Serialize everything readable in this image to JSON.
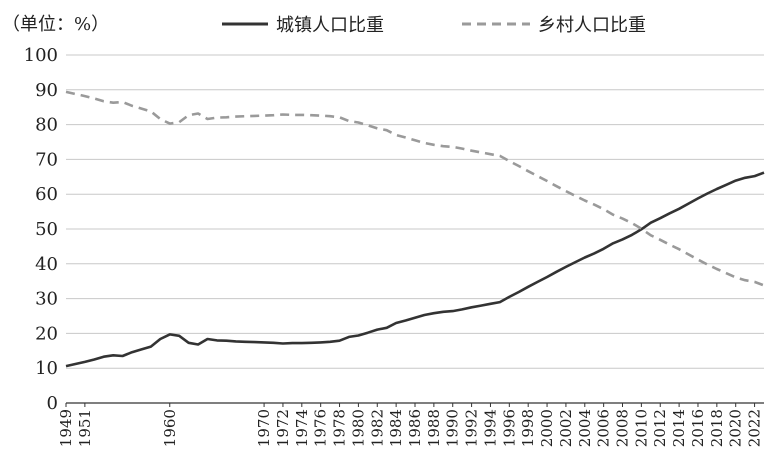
{
  "chart_data": {
    "type": "line",
    "unit_label": "（单位：%）",
    "title": "",
    "xlabel": "",
    "ylabel": "",
    "ylim": [
      0,
      100
    ],
    "yticks": [
      0,
      10,
      20,
      30,
      40,
      50,
      60,
      70,
      80,
      90,
      100
    ],
    "grid": true,
    "legend_position": "top-right",
    "x": [
      1949,
      1950,
      1951,
      1952,
      1953,
      1954,
      1955,
      1956,
      1957,
      1958,
      1959,
      1960,
      1961,
      1962,
      1963,
      1964,
      1965,
      1966,
      1967,
      1968,
      1969,
      1970,
      1971,
      1972,
      1973,
      1974,
      1975,
      1976,
      1977,
      1978,
      1979,
      1980,
      1981,
      1982,
      1983,
      1984,
      1985,
      1986,
      1987,
      1988,
      1989,
      1990,
      1991,
      1992,
      1993,
      1994,
      1995,
      1996,
      1997,
      1998,
      1999,
      2000,
      2001,
      2002,
      2003,
      2004,
      2005,
      2006,
      2007,
      2008,
      2009,
      2010,
      2011,
      2012,
      2013,
      2014,
      2015,
      2016,
      2017,
      2018,
      2019,
      2020,
      2021,
      2022,
      2023
    ],
    "x_tick_labels": [
      "1949",
      "1951",
      "1960",
      "1970",
      "1972",
      "1974",
      "1976",
      "1978",
      "1980",
      "1982",
      "1984",
      "1986",
      "1988",
      "1990",
      "1992",
      "1994",
      "1996",
      "1998",
      "2000",
      "2002",
      "2004",
      "2006",
      "2008",
      "2010",
      "2012",
      "2014",
      "2016",
      "2018",
      "2020",
      "2022"
    ],
    "series": [
      {
        "name": "城镇人口比重",
        "color": "#333333",
        "style": "solid",
        "values": [
          10.6,
          11.2,
          11.8,
          12.5,
          13.3,
          13.7,
          13.5,
          14.6,
          15.4,
          16.2,
          18.4,
          19.7,
          19.3,
          17.3,
          16.8,
          18.4,
          18.0,
          17.9,
          17.7,
          17.6,
          17.5,
          17.4,
          17.3,
          17.1,
          17.2,
          17.2,
          17.3,
          17.4,
          17.6,
          17.9,
          19.0,
          19.4,
          20.2,
          21.1,
          21.6,
          23.0,
          23.7,
          24.5,
          25.3,
          25.8,
          26.2,
          26.4,
          26.9,
          27.5,
          28.0,
          28.5,
          29.0,
          30.5,
          31.9,
          33.4,
          34.8,
          36.2,
          37.7,
          39.1,
          40.5,
          41.8,
          43.0,
          44.3,
          45.9,
          47.0,
          48.3,
          49.9,
          51.8,
          53.1,
          54.5,
          55.8,
          57.3,
          58.8,
          60.2,
          61.5,
          62.7,
          63.9,
          64.7,
          65.2,
          66.2
        ]
      },
      {
        "name": "乡村人口比重",
        "color": "#9a9a9a",
        "style": "dashed",
        "values": [
          89.4,
          88.8,
          88.2,
          87.5,
          86.7,
          86.3,
          86.5,
          85.4,
          84.6,
          83.8,
          81.6,
          80.3,
          80.7,
          82.7,
          83.2,
          81.6,
          82.0,
          82.1,
          82.3,
          82.4,
          82.5,
          82.6,
          82.7,
          82.9,
          82.8,
          82.8,
          82.7,
          82.6,
          82.4,
          82.1,
          81.0,
          80.6,
          79.8,
          78.9,
          78.4,
          77.0,
          76.3,
          75.5,
          74.7,
          74.2,
          73.8,
          73.6,
          73.1,
          72.5,
          72.0,
          71.5,
          71.0,
          69.5,
          68.1,
          66.6,
          65.2,
          63.8,
          62.3,
          60.9,
          59.5,
          58.2,
          57.0,
          55.7,
          54.1,
          53.0,
          51.7,
          50.1,
          48.2,
          46.9,
          45.5,
          44.2,
          42.7,
          41.2,
          39.8,
          38.5,
          37.3,
          36.1,
          35.3,
          34.8,
          33.8
        ]
      }
    ]
  }
}
